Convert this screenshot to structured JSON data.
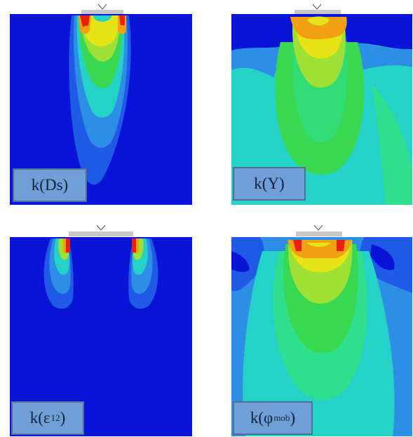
{
  "panels": [
    {
      "id": "Ds",
      "label_main": "k(Ds)",
      "label_sub": ""
    },
    {
      "id": "Y",
      "label_main": "k(Y)",
      "label_sub": ""
    },
    {
      "id": "eps12",
      "label_main": "k(ε",
      "label_sub": "12",
      "label_end": ")"
    },
    {
      "id": "phimob",
      "label_main": "k(φ",
      "label_sub": "mob",
      "label_end": ")"
    }
  ],
  "colors": {
    "deep_blue": "#0a14d8",
    "blue": "#1e5ae6",
    "light_blue": "#2d8ee6",
    "cyan": "#24d2c8",
    "green_cyan": "#2ee08e",
    "green": "#38d850",
    "lime": "#9ee034",
    "yellow": "#e6e414",
    "orange": "#f0a010",
    "red": "#e82010",
    "footing": "#c8c8c8"
  }
}
